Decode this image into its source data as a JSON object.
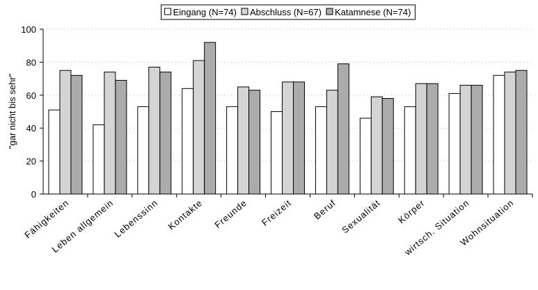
{
  "chart_data": {
    "type": "bar",
    "ylabel": "\"gar nicht bis sehr\"",
    "categories": [
      "Fähigkeiten",
      "Leben allgemein",
      "Lebenssinn",
      "Kontakte",
      "Freunde",
      "Freizeit",
      "Beruf",
      "Sexualität",
      "Körper",
      "wirtsch. Situation",
      "Wohnsituation"
    ],
    "series": [
      {
        "name": "Eingang (N=74)",
        "color": "#ffffff",
        "values": [
          51,
          42,
          53,
          64,
          53,
          50,
          53,
          46,
          53,
          61,
          72
        ]
      },
      {
        "name": "Abschluss (N=67)",
        "color": "#d4d4d4",
        "values": [
          75,
          74,
          77,
          81,
          65,
          68,
          63,
          59,
          67,
          66,
          74
        ]
      },
      {
        "name": "Katamnese (N=74)",
        "color": "#ababab",
        "values": [
          72,
          69,
          74,
          92,
          63,
          68,
          79,
          58,
          67,
          66,
          75
        ]
      }
    ],
    "ylim": [
      0,
      100
    ],
    "yticks": [
      0,
      20,
      40,
      60,
      80,
      100
    ],
    "grid": true,
    "legend": "top"
  }
}
